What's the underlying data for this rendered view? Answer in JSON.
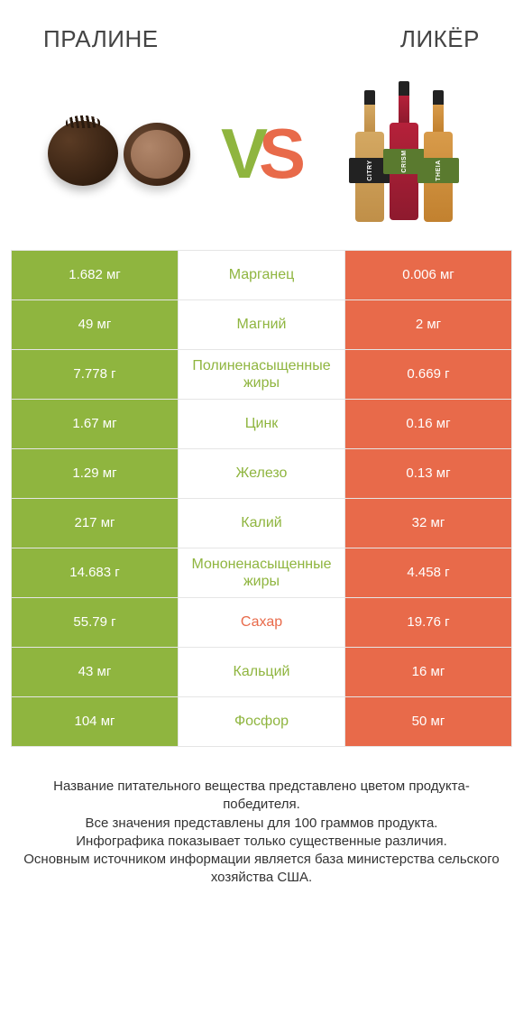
{
  "header": {
    "left_title": "ПРАЛИНЕ",
    "right_title": "ЛИКЁР"
  },
  "hero": {
    "vs_v": "V",
    "vs_s": "S",
    "bottle_labels": [
      "CITRY",
      "CRISM",
      "THEIA"
    ]
  },
  "colors": {
    "left": "#8fb53f",
    "right": "#e86a4a",
    "border": "#e5e5e5",
    "text": "#333333",
    "background": "#ffffff"
  },
  "table": {
    "rows": [
      {
        "left": "1.682 мг",
        "label": "Марганец",
        "right": "0.006 мг",
        "winner": "left"
      },
      {
        "left": "49 мг",
        "label": "Магний",
        "right": "2 мг",
        "winner": "left"
      },
      {
        "left": "7.778 г",
        "label": "Полиненасыщенные жиры",
        "right": "0.669 г",
        "winner": "left"
      },
      {
        "left": "1.67 мг",
        "label": "Цинк",
        "right": "0.16 мг",
        "winner": "left"
      },
      {
        "left": "1.29 мг",
        "label": "Железо",
        "right": "0.13 мг",
        "winner": "left"
      },
      {
        "left": "217 мг",
        "label": "Калий",
        "right": "32 мг",
        "winner": "left"
      },
      {
        "left": "14.683 г",
        "label": "Мононенасыщенные жиры",
        "right": "4.458 г",
        "winner": "left"
      },
      {
        "left": "55.79 г",
        "label": "Сахар",
        "right": "19.76 г",
        "winner": "right"
      },
      {
        "left": "43 мг",
        "label": "Кальций",
        "right": "16 мг",
        "winner": "left"
      },
      {
        "left": "104 мг",
        "label": "Фосфор",
        "right": "50 мг",
        "winner": "left"
      }
    ]
  },
  "footer": {
    "line1": "Название питательного вещества представлено цветом продукта-победителя.",
    "line2": "Все значения представлены для 100 граммов продукта.",
    "line3": "Инфографика показывает только существенные различия.",
    "line4": "Основным источником информации является база министерства сельского хозяйства США."
  }
}
